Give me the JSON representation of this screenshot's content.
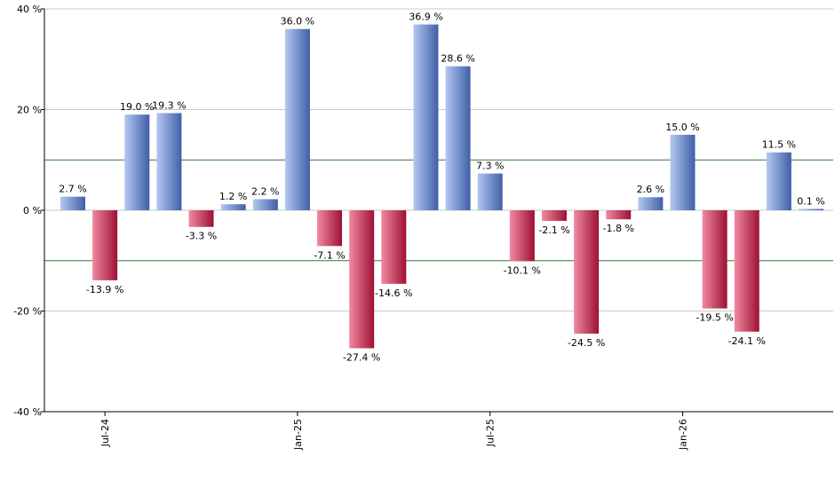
{
  "chart_data": {
    "type": "bar",
    "title": "",
    "xlabel": "",
    "ylabel": "",
    "ylim": [
      -40,
      40
    ],
    "yticks": [
      -40,
      -20,
      0,
      20,
      40
    ],
    "ytick_labels": [
      "-40 %",
      "-20 %",
      "0 %",
      "20 %",
      "40 %"
    ],
    "xtick_labels": [
      {
        "label": "Jul-24",
        "index": 1
      },
      {
        "label": "Jan-25",
        "index": 7
      },
      {
        "label": "Jul-25",
        "index": 13
      },
      {
        "label": "Jan-26",
        "index": 19
      }
    ],
    "reference_lines": [
      10,
      -10
    ],
    "values": [
      2.7,
      -13.9,
      19.0,
      19.3,
      -3.3,
      1.2,
      2.2,
      36.0,
      -7.1,
      -27.4,
      -14.6,
      36.9,
      28.6,
      7.3,
      -10.1,
      -2.1,
      -24.5,
      -1.8,
      2.6,
      15.0,
      -19.5,
      -24.1,
      11.5,
      0.1
    ],
    "labels": [
      "2.7 %",
      "-13.9 %",
      "19.0 %",
      "19.3 %",
      "-3.3 %",
      "1.2 %",
      "2.2 %",
      "36.0 %",
      "-7.1 %",
      "-27.4 %",
      "-14.6 %",
      "36.9 %",
      "28.6 %",
      "7.3 %",
      "-10.1 %",
      "-2.1 %",
      "-24.5 %",
      "-1.8 %",
      "2.6 %",
      "15.0 %",
      "-19.5 %",
      "-24.1 %",
      "11.5 %",
      "0.1 %"
    ],
    "grid": true,
    "colors": {
      "positive_light": "#b4c8f0",
      "positive_dark": "#3f5fa8",
      "negative_light": "#f08aa0",
      "negative_dark": "#9e1035",
      "grid": "#c8c8c8",
      "reference_line": "#2e7d32",
      "axis": "#000000"
    }
  }
}
